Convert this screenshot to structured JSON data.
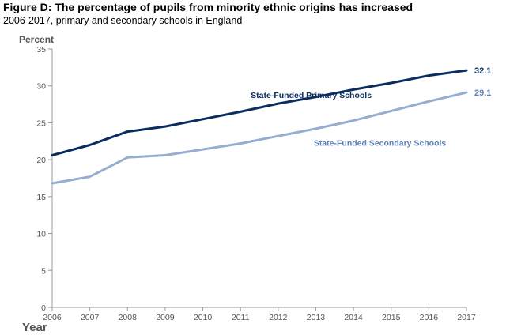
{
  "chart_data": {
    "type": "line",
    "title": "Figure D: The percentage of pupils from minority ethnic origins has increased",
    "subtitle": "2006-2017, primary and secondary schools in England",
    "ylabel": "Percent",
    "xlabel": "Year",
    "ylim": [
      0,
      35
    ],
    "yticks": [
      "0",
      "5",
      "10",
      "15",
      "20",
      "25",
      "30",
      "35"
    ],
    "categories": [
      "2006",
      "2007",
      "2008",
      "2009",
      "2010",
      "2011",
      "2012",
      "2013",
      "2014",
      "2015",
      "2016",
      "2017"
    ],
    "series": [
      {
        "name": "State-Funded Primary Schools",
        "color": "#0b2c5e",
        "values": [
          20.6,
          22.0,
          23.8,
          24.5,
          25.5,
          26.5,
          27.6,
          28.5,
          29.5,
          30.4,
          31.4,
          32.1
        ],
        "end_label": "32.1"
      },
      {
        "name": "State-Funded Secondary Schools",
        "color": "#95aecf",
        "label_color": "#5f82b5",
        "values": [
          16.8,
          17.7,
          20.3,
          20.6,
          21.4,
          22.2,
          23.2,
          24.2,
          25.3,
          26.6,
          27.9,
          29.1
        ],
        "end_label": "29.1"
      }
    ]
  }
}
